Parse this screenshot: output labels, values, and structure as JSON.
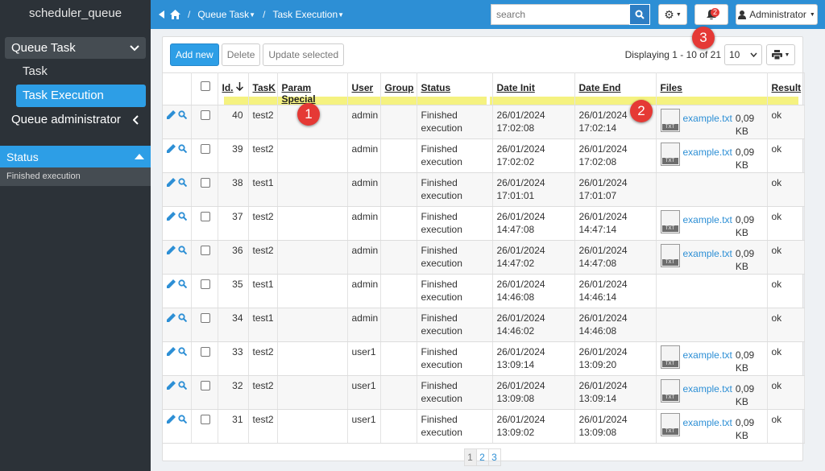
{
  "app": {
    "title": "scheduler_queue"
  },
  "sidebar": {
    "section": "Queue Task",
    "items": [
      {
        "label": "Task"
      },
      {
        "label": "Task Execution"
      }
    ],
    "admin": "Queue administrator",
    "status_header": "Status",
    "status_value": "Finished execution"
  },
  "topbar": {
    "breadcrumbs": [
      "Queue Task",
      "Task Execution"
    ],
    "search_placeholder": "search",
    "notifications": "2",
    "user": "Administrator"
  },
  "toolbar": {
    "add": "Add new",
    "delete": "Delete",
    "update": "Update selected",
    "display": "Displaying 1 - 10 of 21",
    "per_page": "10"
  },
  "table": {
    "headers": [
      "Id.",
      "TasK",
      "Param Special",
      "User",
      "Group",
      "Status",
      "Date Init",
      "Date End",
      "Files",
      "Result"
    ],
    "rows": [
      {
        "id": "40",
        "task": "test2",
        "user": "admin",
        "status1": "Finished",
        "status2": "execution",
        "init1": "26/01/2024",
        "init2": "17:02:08",
        "end1": "26/01/2024",
        "end2": "17:02:14",
        "file": "example.txt",
        "size": "0,09 KB",
        "result": "ok"
      },
      {
        "id": "39",
        "task": "test2",
        "user": "admin",
        "status1": "Finished",
        "status2": "execution",
        "init1": "26/01/2024",
        "init2": "17:02:02",
        "end1": "26/01/2024",
        "end2": "17:02:08",
        "file": "example.txt",
        "size": "0,09 KB",
        "result": "ok"
      },
      {
        "id": "38",
        "task": "test1",
        "user": "admin",
        "status1": "Finished",
        "status2": "execution",
        "init1": "26/01/2024",
        "init2": "17:01:01",
        "end1": "26/01/2024",
        "end2": "17:01:07",
        "file": "",
        "size": "",
        "result": "ok"
      },
      {
        "id": "37",
        "task": "test2",
        "user": "admin",
        "status1": "Finished",
        "status2": "execution",
        "init1": "26/01/2024",
        "init2": "14:47:08",
        "end1": "26/01/2024",
        "end2": "14:47:14",
        "file": "example.txt",
        "size": "0,09 KB",
        "result": "ok"
      },
      {
        "id": "36",
        "task": "test2",
        "user": "admin",
        "status1": "Finished",
        "status2": "execution",
        "init1": "26/01/2024",
        "init2": "14:47:02",
        "end1": "26/01/2024",
        "end2": "14:47:08",
        "file": "example.txt",
        "size": "0,09 KB",
        "result": "ok"
      },
      {
        "id": "35",
        "task": "test1",
        "user": "admin",
        "status1": "Finished",
        "status2": "execution",
        "init1": "26/01/2024",
        "init2": "14:46:08",
        "end1": "26/01/2024",
        "end2": "14:46:14",
        "file": "",
        "size": "",
        "result": "ok"
      },
      {
        "id": "34",
        "task": "test1",
        "user": "admin",
        "status1": "Finished",
        "status2": "execution",
        "init1": "26/01/2024",
        "init2": "14:46:02",
        "end1": "26/01/2024",
        "end2": "14:46:08",
        "file": "",
        "size": "",
        "result": "ok"
      },
      {
        "id": "33",
        "task": "test2",
        "user": "user1",
        "status1": "Finished",
        "status2": "execution",
        "init1": "26/01/2024",
        "init2": "13:09:14",
        "end1": "26/01/2024",
        "end2": "13:09:20",
        "file": "example.txt",
        "size": "0,09 KB",
        "result": "ok"
      },
      {
        "id": "32",
        "task": "test2",
        "user": "user1",
        "status1": "Finished",
        "status2": "execution",
        "init1": "26/01/2024",
        "init2": "13:09:08",
        "end1": "26/01/2024",
        "end2": "13:09:14",
        "file": "example.txt",
        "size": "0,09 KB",
        "result": "ok"
      },
      {
        "id": "31",
        "task": "test2",
        "user": "user1",
        "status1": "Finished",
        "status2": "execution",
        "init1": "26/01/2024",
        "init2": "13:09:02",
        "end1": "26/01/2024",
        "end2": "13:09:08",
        "file": "example.txt",
        "size": "0,09 KB",
        "result": "ok"
      }
    ],
    "file_badge": "TXT"
  },
  "pagination": [
    "1",
    "2",
    "3"
  ],
  "markers": [
    "1",
    "2",
    "3"
  ]
}
